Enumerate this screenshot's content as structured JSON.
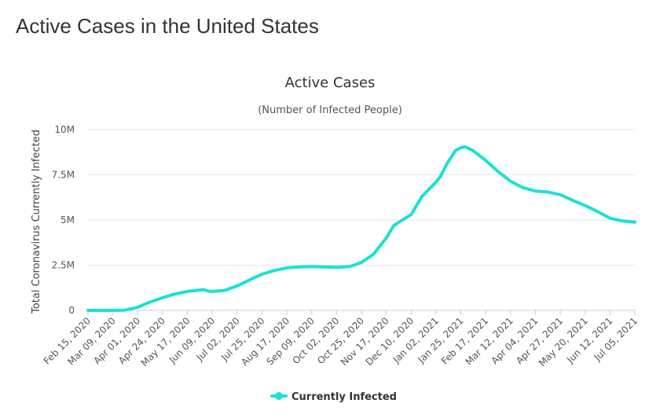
{
  "page": {
    "title": "Active Cases in the United States"
  },
  "chart_data": {
    "type": "line",
    "title": "Active Cases",
    "subtitle": "(Number of Infected People)",
    "ylabel": "Total Coronavirus Currently Infected",
    "xlabel": "",
    "ylim": [
      0,
      10000000
    ],
    "y_ticks": [
      {
        "value": 0,
        "label": "0"
      },
      {
        "value": 2500000,
        "label": "2.5M"
      },
      {
        "value": 5000000,
        "label": "5M"
      },
      {
        "value": 7500000,
        "label": "7.5M"
      },
      {
        "value": 10000000,
        "label": "10M"
      }
    ],
    "categories": [
      "Feb 15, 2020",
      "Mar 09, 2020",
      "Apr 01, 2020",
      "Apr 24, 2020",
      "May 17, 2020",
      "Jun 09, 2020",
      "Jul 02, 2020",
      "Jul 25, 2020",
      "Aug 17, 2020",
      "Sep 09, 2020",
      "Oct 02, 2020",
      "Oct 25, 2020",
      "Nov 17, 2020",
      "Dec 10, 2020",
      "Jan 02, 2021",
      "Jan 25, 2021",
      "Feb 17, 2021",
      "Mar 12, 2021",
      "Apr 04, 2021",
      "Apr 27, 2021",
      "May 20, 2021",
      "Jun 12, 2021",
      "Jul 05, 2021"
    ],
    "grid": true,
    "legend_position": "bottom-center",
    "series": [
      {
        "name": "Currently Infected",
        "color": "#1de0d6",
        "points": [
          {
            "x": "Feb 15, 2020",
            "y": 10
          },
          {
            "x": "Mar 09, 2020",
            "y": 500
          },
          {
            "x": "Mar 20, 2020",
            "y": 15000
          },
          {
            "x": "Apr 01, 2020",
            "y": 170000
          },
          {
            "x": "Apr 12, 2020",
            "y": 450000
          },
          {
            "x": "Apr 24, 2020",
            "y": 700000
          },
          {
            "x": "May 05, 2020",
            "y": 900000
          },
          {
            "x": "May 17, 2020",
            "y": 1050000
          },
          {
            "x": "May 28, 2020",
            "y": 1120000
          },
          {
            "x": "Jun 01, 2020",
            "y": 1140000
          },
          {
            "x": "Jun 06, 2020",
            "y": 1060000
          },
          {
            "x": "Jun 09, 2020",
            "y": 1050000
          },
          {
            "x": "Jun 20, 2020",
            "y": 1100000
          },
          {
            "x": "Jul 02, 2020",
            "y": 1350000
          },
          {
            "x": "Jul 14, 2020",
            "y": 1700000
          },
          {
            "x": "Jul 25, 2020",
            "y": 2000000
          },
          {
            "x": "Aug 05, 2020",
            "y": 2200000
          },
          {
            "x": "Aug 17, 2020",
            "y": 2350000
          },
          {
            "x": "Aug 28, 2020",
            "y": 2400000
          },
          {
            "x": "Sep 09, 2020",
            "y": 2420000
          },
          {
            "x": "Sep 20, 2020",
            "y": 2400000
          },
          {
            "x": "Oct 02, 2020",
            "y": 2380000
          },
          {
            "x": "Oct 14, 2020",
            "y": 2420000
          },
          {
            "x": "Oct 25, 2020",
            "y": 2650000
          },
          {
            "x": "Nov 05, 2020",
            "y": 3100000
          },
          {
            "x": "Nov 17, 2020",
            "y": 4000000
          },
          {
            "x": "Nov 24, 2020",
            "y": 4700000
          },
          {
            "x": "Dec 10, 2020",
            "y": 5300000
          },
          {
            "x": "Dec 20, 2020",
            "y": 6300000
          },
          {
            "x": "Jan 02, 2021",
            "y": 7100000
          },
          {
            "x": "Jan 06, 2021",
            "y": 7400000
          },
          {
            "x": "Jan 12, 2021",
            "y": 8100000
          },
          {
            "x": "Jan 20, 2021",
            "y": 8850000
          },
          {
            "x": "Jan 25, 2021",
            "y": 9000000
          },
          {
            "x": "Jan 29, 2021",
            "y": 9050000
          },
          {
            "x": "Feb 05, 2021",
            "y": 8850000
          },
          {
            "x": "Feb 17, 2021",
            "y": 8300000
          },
          {
            "x": "Feb 28, 2021",
            "y": 7700000
          },
          {
            "x": "Mar 12, 2021",
            "y": 7150000
          },
          {
            "x": "Mar 23, 2021",
            "y": 6800000
          },
          {
            "x": "Apr 04, 2021",
            "y": 6600000
          },
          {
            "x": "Apr 15, 2021",
            "y": 6550000
          },
          {
            "x": "Apr 27, 2021",
            "y": 6400000
          },
          {
            "x": "May 08, 2021",
            "y": 6100000
          },
          {
            "x": "May 20, 2021",
            "y": 5800000
          },
          {
            "x": "Jun 01, 2021",
            "y": 5450000
          },
          {
            "x": "Jun 12, 2021",
            "y": 5100000
          },
          {
            "x": "Jun 23, 2021",
            "y": 4950000
          },
          {
            "x": "Jul 05, 2021",
            "y": 4880000
          }
        ]
      }
    ]
  }
}
